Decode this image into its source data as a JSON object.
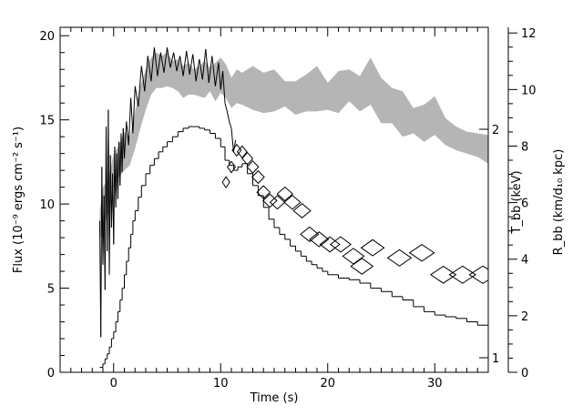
{
  "chart_data": {
    "type": "line",
    "xlabel": "Time (s)",
    "ylabel": "Flux (10⁻⁹ ergs cm⁻² s⁻¹)",
    "y2label": "T_bb (keV)",
    "y3label": "R_bb (km/d₁₀ kpc)",
    "xlim": [
      -5,
      35
    ],
    "ylim": [
      0,
      20.5
    ],
    "x_ticks": [
      0,
      10,
      20,
      30
    ],
    "y_ticks": [
      0,
      5,
      10,
      15,
      20
    ],
    "tbb_ticks": [
      1,
      2
    ],
    "rbb_ylim": [
      0,
      12.2
    ],
    "rbb_ticks": [
      0,
      2,
      4,
      6,
      8,
      10,
      12
    ],
    "grid": false,
    "legend": "none",
    "series": [
      {
        "kind": "flux_step",
        "points": [
          [
            -1.3,
            0.3
          ],
          [
            -1.0,
            0.5
          ],
          [
            -0.8,
            0.8
          ],
          [
            -0.6,
            1.1
          ],
          [
            -0.4,
            1.5
          ],
          [
            -0.2,
            2.0
          ],
          [
            0.0,
            2.4
          ],
          [
            0.2,
            3.0
          ],
          [
            0.4,
            3.6
          ],
          [
            0.6,
            4.3
          ],
          [
            0.8,
            5.0
          ],
          [
            1.0,
            5.8
          ],
          [
            1.2,
            6.6
          ],
          [
            1.4,
            7.4
          ],
          [
            1.6,
            8.2
          ],
          [
            1.8,
            9.0
          ],
          [
            2.0,
            9.6
          ],
          [
            2.3,
            10.4
          ],
          [
            2.6,
            11.1
          ],
          [
            3.0,
            11.8
          ],
          [
            3.4,
            12.3
          ],
          [
            3.8,
            12.7
          ],
          [
            4.2,
            13.1
          ],
          [
            4.6,
            13.4
          ],
          [
            5.0,
            13.7
          ],
          [
            5.5,
            14.0
          ],
          [
            6.0,
            14.3
          ],
          [
            6.5,
            14.5
          ],
          [
            7.0,
            14.6
          ],
          [
            7.5,
            14.6
          ],
          [
            8.0,
            14.5
          ],
          [
            8.5,
            14.4
          ],
          [
            9.0,
            14.2
          ],
          [
            9.5,
            13.9
          ],
          [
            10.0,
            13.4
          ],
          [
            10.4,
            12.6
          ],
          [
            10.8,
            12.3
          ],
          [
            11.2,
            12.0
          ],
          [
            11.6,
            12.2
          ],
          [
            12.0,
            12.4
          ],
          [
            12.5,
            11.8
          ],
          [
            13.0,
            11.1
          ],
          [
            13.5,
            10.5
          ],
          [
            14.0,
            9.8
          ],
          [
            14.5,
            9.1
          ],
          [
            15.0,
            8.6
          ],
          [
            15.5,
            8.2
          ],
          [
            16.0,
            7.9
          ],
          [
            16.5,
            7.5
          ],
          [
            17.0,
            7.2
          ],
          [
            17.5,
            6.9
          ],
          [
            18.0,
            6.6
          ],
          [
            18.5,
            6.4
          ],
          [
            19.0,
            6.2
          ],
          [
            19.5,
            6.0
          ],
          [
            20.0,
            5.8
          ],
          [
            21.0,
            5.6
          ],
          [
            22.0,
            5.5
          ],
          [
            23.0,
            5.3
          ],
          [
            24.0,
            5.0
          ],
          [
            25.0,
            4.8
          ],
          [
            26.0,
            4.5
          ],
          [
            27.0,
            4.3
          ],
          [
            28.0,
            3.9
          ],
          [
            29.0,
            3.6
          ],
          [
            30.0,
            3.4
          ],
          [
            31.0,
            3.3
          ],
          [
            32.0,
            3.2
          ],
          [
            33.0,
            3.0
          ],
          [
            34.0,
            2.8
          ],
          [
            35.0,
            2.6
          ]
        ]
      },
      {
        "kind": "tbb_band",
        "upper": [
          [
            -1.3,
            9.6
          ],
          [
            -1.0,
            11.0
          ],
          [
            -0.5,
            11.5
          ],
          [
            0.0,
            13.0
          ],
          [
            0.5,
            13.5
          ],
          [
            1.0,
            14.3
          ],
          [
            1.5,
            14.0
          ],
          [
            2.0,
            15.5
          ],
          [
            2.5,
            17.0
          ],
          [
            3.0,
            18.0
          ],
          [
            3.5,
            18.7
          ],
          [
            4.0,
            19.0
          ],
          [
            4.5,
            18.8
          ],
          [
            5.0,
            19.0
          ],
          [
            5.5,
            18.5
          ],
          [
            6.0,
            18.6
          ],
          [
            6.5,
            18.2
          ],
          [
            7.0,
            18.4
          ],
          [
            7.5,
            18.0
          ],
          [
            8.0,
            18.2
          ],
          [
            8.5,
            18.5
          ],
          [
            9.0,
            18.1
          ],
          [
            9.5,
            18.4
          ],
          [
            10.0,
            18.7
          ],
          [
            10.5,
            18.3
          ],
          [
            11.0,
            17.5
          ],
          [
            11.5,
            18.0
          ],
          [
            12.0,
            17.8
          ],
          [
            13.0,
            18.2
          ],
          [
            14.0,
            17.8
          ],
          [
            15.0,
            18.0
          ],
          [
            16.0,
            17.3
          ],
          [
            17.0,
            17.3
          ],
          [
            18.0,
            17.7
          ],
          [
            19.0,
            18.2
          ],
          [
            20.0,
            17.2
          ],
          [
            21.0,
            17.9
          ],
          [
            22.0,
            18.0
          ],
          [
            23.0,
            17.6
          ],
          [
            24.0,
            18.7
          ],
          [
            25.0,
            17.5
          ],
          [
            26.0,
            16.9
          ],
          [
            27.0,
            16.7
          ],
          [
            28.0,
            15.7
          ],
          [
            29.0,
            15.9
          ],
          [
            30.0,
            16.4
          ],
          [
            31.0,
            15.1
          ],
          [
            32.0,
            14.6
          ],
          [
            33.0,
            14.3
          ],
          [
            34.0,
            14.2
          ],
          [
            35.0,
            14.1
          ]
        ],
        "lower": [
          [
            -1.3,
            7.8
          ],
          [
            -1.0,
            8.6
          ],
          [
            -0.5,
            9.4
          ],
          [
            0.0,
            11.0
          ],
          [
            0.5,
            11.6
          ],
          [
            1.0,
            12.0
          ],
          [
            1.5,
            12.3
          ],
          [
            2.0,
            13.3
          ],
          [
            2.5,
            14.5
          ],
          [
            3.0,
            15.6
          ],
          [
            3.5,
            16.5
          ],
          [
            4.0,
            16.9
          ],
          [
            4.5,
            16.9
          ],
          [
            5.0,
            17.0
          ],
          [
            5.5,
            16.9
          ],
          [
            6.0,
            16.7
          ],
          [
            6.5,
            16.3
          ],
          [
            7.0,
            16.5
          ],
          [
            7.5,
            16.5
          ],
          [
            8.0,
            16.4
          ],
          [
            8.5,
            16.3
          ],
          [
            9.0,
            16.7
          ],
          [
            9.5,
            16.1
          ],
          [
            10.0,
            16.6
          ],
          [
            10.5,
            16.3
          ],
          [
            11.0,
            15.7
          ],
          [
            11.5,
            16.0
          ],
          [
            12.0,
            15.9
          ],
          [
            13.0,
            15.6
          ],
          [
            14.0,
            15.4
          ],
          [
            15.0,
            15.5
          ],
          [
            16.0,
            15.8
          ],
          [
            17.0,
            15.3
          ],
          [
            18.0,
            15.5
          ],
          [
            19.0,
            15.5
          ],
          [
            20.0,
            15.6
          ],
          [
            21.0,
            15.4
          ],
          [
            22.0,
            16.1
          ],
          [
            23.0,
            15.5
          ],
          [
            24.0,
            15.9
          ],
          [
            25.0,
            14.8
          ],
          [
            26.0,
            14.8
          ],
          [
            27.0,
            14.0
          ],
          [
            28.0,
            14.2
          ],
          [
            29.0,
            13.7
          ],
          [
            30.0,
            14.1
          ],
          [
            31.0,
            13.5
          ],
          [
            32.0,
            13.2
          ],
          [
            33.0,
            13.0
          ],
          [
            34.0,
            12.8
          ],
          [
            35.0,
            12.4
          ]
        ]
      },
      {
        "kind": "rbb_noisy",
        "points": [
          [
            -1.3,
            9.0
          ],
          [
            -1.2,
            2.1
          ],
          [
            -1.1,
            12.2
          ],
          [
            -1.0,
            6.4
          ],
          [
            -0.9,
            10.5
          ],
          [
            -0.8,
            4.9
          ],
          [
            -0.7,
            14.6
          ],
          [
            -0.6,
            7.2
          ],
          [
            -0.5,
            15.6
          ],
          [
            -0.4,
            5.8
          ],
          [
            -0.3,
            12.9
          ],
          [
            -0.2,
            8.6
          ],
          [
            -0.1,
            11.8
          ],
          [
            0.0,
            7.6
          ],
          [
            0.1,
            13.4
          ],
          [
            0.2,
            9.8
          ],
          [
            0.3,
            13.0
          ],
          [
            0.4,
            10.3
          ],
          [
            0.5,
            13.7
          ],
          [
            0.6,
            11.1
          ],
          [
            0.7,
            14.2
          ],
          [
            0.8,
            11.9
          ],
          [
            0.9,
            14.5
          ],
          [
            1.0,
            12.7
          ],
          [
            1.2,
            14.9
          ],
          [
            1.4,
            13.5
          ],
          [
            1.6,
            16.3
          ],
          [
            1.8,
            14.2
          ],
          [
            2.0,
            17.0
          ],
          [
            2.3,
            15.8
          ],
          [
            2.6,
            18.2
          ],
          [
            2.9,
            16.7
          ],
          [
            3.2,
            18.8
          ],
          [
            3.5,
            17.3
          ],
          [
            3.8,
            19.3
          ],
          [
            4.1,
            17.6
          ],
          [
            4.4,
            19.0
          ],
          [
            4.7,
            17.8
          ],
          [
            5.0,
            19.3
          ],
          [
            5.3,
            18.1
          ],
          [
            5.6,
            19.0
          ],
          [
            5.9,
            17.9
          ],
          [
            6.2,
            18.8
          ],
          [
            6.5,
            17.6
          ],
          [
            6.8,
            19.1
          ],
          [
            7.1,
            17.7
          ],
          [
            7.4,
            18.9
          ],
          [
            7.7,
            17.3
          ],
          [
            8.0,
            18.6
          ],
          [
            8.3,
            17.4
          ],
          [
            8.6,
            19.2
          ],
          [
            8.9,
            17.2
          ],
          [
            9.2,
            18.8
          ],
          [
            9.5,
            17.0
          ],
          [
            9.8,
            18.4
          ],
          [
            10.0,
            16.8
          ],
          [
            10.2,
            17.9
          ],
          [
            10.4,
            16.0
          ],
          [
            10.6,
            15.5
          ],
          [
            10.8,
            14.9
          ],
          [
            11.0,
            14.5
          ],
          [
            11.2,
            13.1
          ],
          [
            11.4,
            13.8
          ]
        ]
      },
      {
        "kind": "flux_diamonds",
        "points": [
          [
            10.5,
            11.3
          ],
          [
            11.0,
            12.2
          ],
          [
            11.5,
            13.2
          ],
          [
            12.0,
            13.1
          ],
          [
            12.5,
            12.7
          ],
          [
            13.0,
            12.2
          ],
          [
            13.5,
            11.6
          ],
          [
            14.0,
            10.7
          ],
          [
            14.6,
            10.2
          ],
          [
            15.3,
            10.1
          ],
          [
            16.0,
            10.6
          ],
          [
            16.7,
            10.1
          ],
          [
            17.6,
            9.6
          ],
          [
            18.3,
            8.2
          ],
          [
            19.2,
            7.9
          ],
          [
            20.2,
            7.6
          ],
          [
            21.2,
            7.6
          ],
          [
            22.4,
            6.9
          ],
          [
            23.2,
            6.3
          ],
          [
            24.2,
            7.4
          ],
          [
            26.7,
            6.8
          ],
          [
            28.8,
            7.1
          ],
          [
            30.8,
            5.8
          ],
          [
            32.6,
            5.8
          ],
          [
            34.5,
            5.8
          ]
        ]
      }
    ]
  }
}
